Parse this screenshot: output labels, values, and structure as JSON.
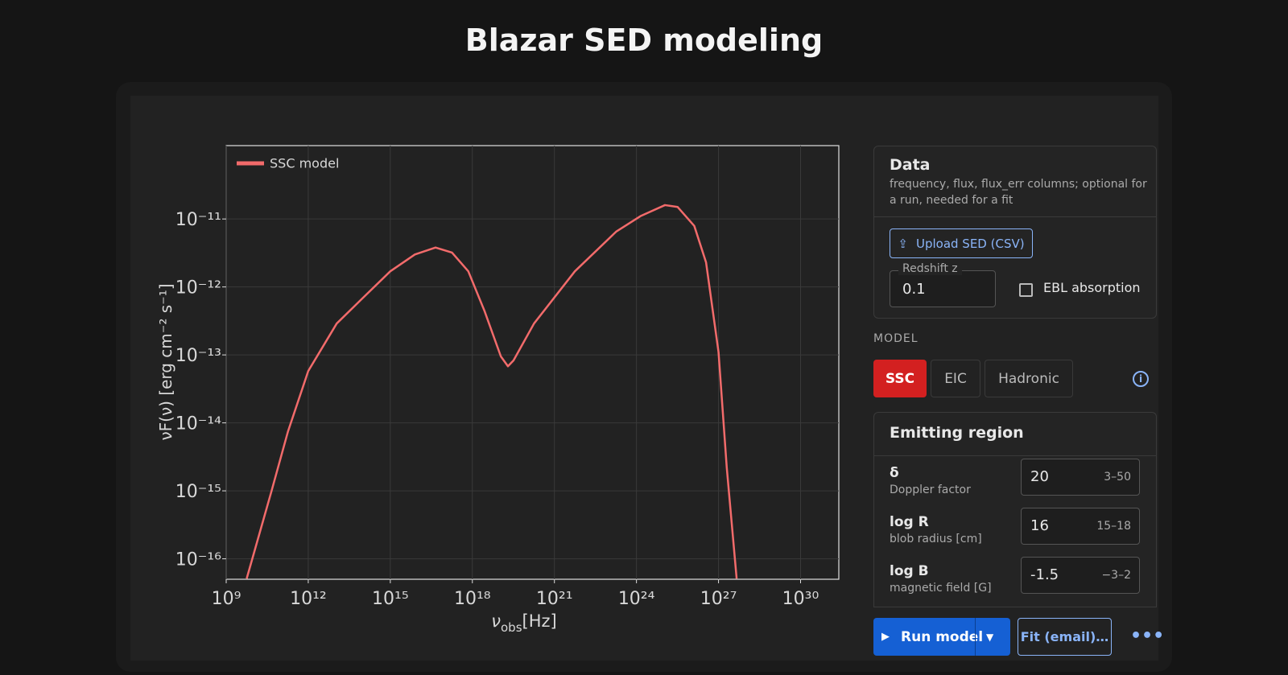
{
  "header": {
    "title": "Blazar SED modeling"
  },
  "chart_data": {
    "type": "line",
    "x_label": {
      "symbol": "ν",
      "subscript": "obs",
      "unit": "[Hz]"
    },
    "y_label": "νF(ν) [erg cm⁻² s⁻¹]",
    "log_x": true,
    "log_y": true,
    "grid": true,
    "legend": "top-left",
    "xlim": [
      1000000000.0,
      2.5e+31
    ],
    "ylim": [
      5e-17,
      1.2e-10
    ],
    "xticks": [
      {
        "value": 1000000000.0,
        "label": "10⁹"
      },
      {
        "value": 1000000000000.0,
        "label": "10¹²"
      },
      {
        "value": 1000000000000000.0,
        "label": "10¹⁵"
      },
      {
        "value": 1e+18,
        "label": "10¹⁸"
      },
      {
        "value": 1e+21,
        "label": "10²¹"
      },
      {
        "value": 1e+24,
        "label": "10²⁴"
      },
      {
        "value": 1e+27,
        "label": "10²⁷"
      },
      {
        "value": 1e+30,
        "label": "10³⁰"
      }
    ],
    "yticks": [
      {
        "value": 1e-16,
        "label": "10⁻¹⁶"
      },
      {
        "value": 1e-15,
        "label": "10⁻¹⁵"
      },
      {
        "value": 1e-14,
        "label": "10⁻¹⁴"
      },
      {
        "value": 1e-13,
        "label": "10⁻¹³"
      },
      {
        "value": 1e-12,
        "label": "10⁻¹²"
      },
      {
        "value": 1e-11,
        "label": "10⁻¹¹"
      }
    ],
    "x": [
      5600000000.0,
      45000000000.0,
      180000000000.0,
      1000000000000.0,
      11000000000000.0,
      89000000000000.0,
      1000000000000000.0,
      7900000000000000.0,
      4.5e+16,
      1.8e+17,
      7.1e+17,
      2.8e+18,
      1.1e+19,
      2e+19,
      3.2e+19,
      1.8e+20,
      5.6e+21,
      1.8e+23,
      1.4e+24,
      1.1e+25,
      3.2e+25,
      1.3e+26,
      3.5e+26,
      1e+27,
      2e+27,
      4.6e+27
    ],
    "series": [
      {
        "name": "SSC model",
        "color": "#f26b6b",
        "values": [
          5.1e-17,
          9.8e-16,
          7.4e-15,
          5.8e-14,
          2.9e-13,
          6.6e-13,
          1.7e-12,
          3e-12,
          3.8e-12,
          3.2e-12,
          1.7e-12,
          4.4e-13,
          9.5e-14,
          6.8e-14,
          8.3e-14,
          2.9e-13,
          1.7e-12,
          6.5e-12,
          1.1e-11,
          1.6e-11,
          1.5e-11,
          7.9e-12,
          2.3e-12,
          1.1e-13,
          2.2e-15,
          5.1e-17
        ]
      }
    ]
  },
  "data_panel": {
    "title": "Data",
    "description": "frequency, flux, flux_err columns; optional for a run, needed for a fit",
    "upload": "Upload SED (CSV)",
    "redshift_label": "Redshift z",
    "redshift_value": "0.1",
    "ebl": "EBL absorption"
  },
  "model": {
    "label": "MODEL",
    "tabs": [
      "SSC",
      "EIC",
      "Hadronic"
    ]
  },
  "emitting_region": {
    "title": "Emitting region",
    "params": [
      {
        "symbol": "δ",
        "description": "Doppler factor",
        "value": "20",
        "range": "3–50"
      },
      {
        "symbol": "log R",
        "description": "blob radius [cm]",
        "value": "16",
        "range": "15–18"
      },
      {
        "symbol": "log B",
        "description": "magnetic field [G]",
        "value": "-1.5",
        "range": "−3–2"
      }
    ]
  },
  "actions": {
    "run": "Run model",
    "fit": "Fit (email)…"
  }
}
